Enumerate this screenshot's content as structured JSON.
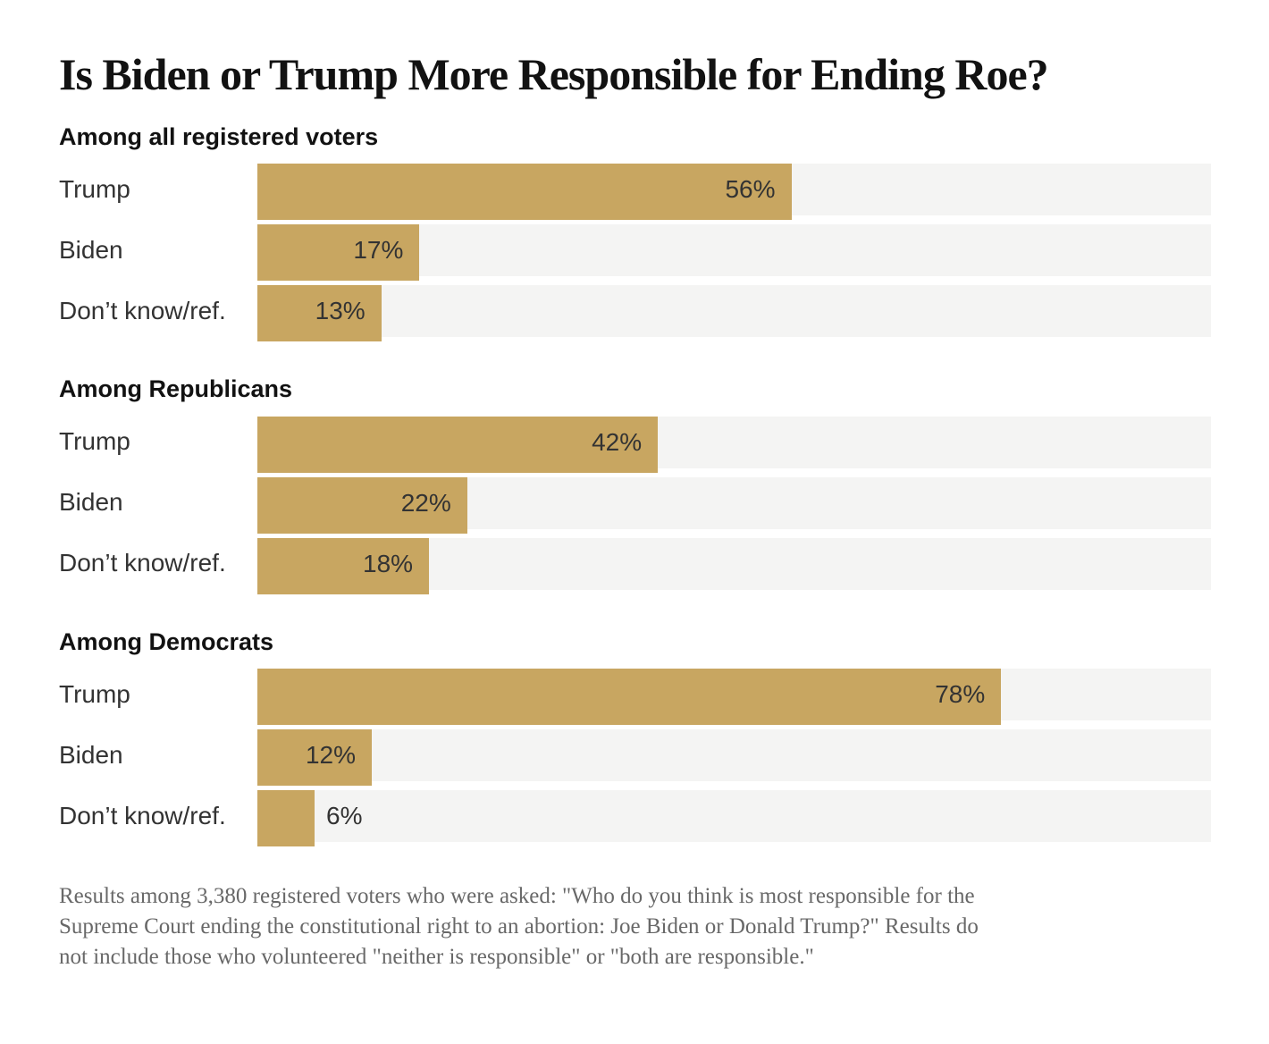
{
  "title": "Is Biden or Trump More Responsible for Ending Roe?",
  "chart_data": {
    "type": "bar",
    "orientation": "horizontal",
    "value_unit": "percent",
    "xlim": [
      0,
      100
    ],
    "grid": false,
    "legend": false,
    "bar_color": "#c8a661",
    "track_color": "#f4f4f3",
    "groups": [
      {
        "heading": "Among all registered voters",
        "categories": [
          "Trump",
          "Biden",
          "Don’t know/ref."
        ],
        "values": [
          56,
          17,
          13
        ],
        "labels": [
          "56%",
          "17%",
          "13%"
        ]
      },
      {
        "heading": "Among Republicans",
        "categories": [
          "Trump",
          "Biden",
          "Don’t know/ref."
        ],
        "values": [
          42,
          22,
          18
        ],
        "labels": [
          "42%",
          "22%",
          "18%"
        ]
      },
      {
        "heading": "Among Democrats",
        "categories": [
          "Trump",
          "Biden",
          "Don’t know/ref."
        ],
        "values": [
          78,
          12,
          6
        ],
        "labels": [
          "78%",
          "12%",
          "6%"
        ]
      }
    ]
  },
  "footnote": {
    "lines": [
      "Results among 3,380 registered voters who were asked: \"Who do you think is most responsible for the",
      "Supreme Court ending the constitutional right to an abortion: Joe Biden or Donald Trump?\" Results do",
      "not include those who volunteered \"neither is responsible\" or \"both are responsible.\""
    ]
  }
}
